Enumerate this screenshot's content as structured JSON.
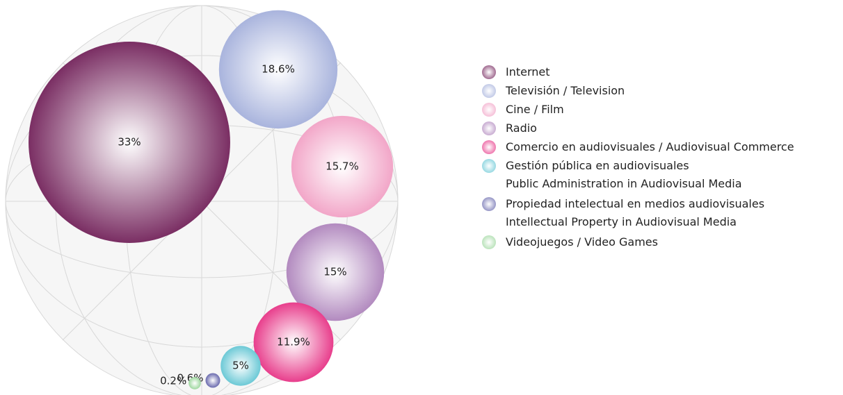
{
  "chart_data": {
    "type": "bubble",
    "categories": [
      "Internet",
      "Televisión / Television",
      "Cine / Film",
      "Radio",
      "Comercio en audiovisuales / Audiovisual Commerce",
      "Gestión pública en audiovisuales\nPublic Administration in Audiovisual Media",
      "Propiedad intelectual en medios audiovisuales\nIntellectual Property in Audiovisual Media",
      "Videojuegos / Video Games"
    ],
    "values": [
      33,
      18.6,
      15.7,
      15,
      11.9,
      5,
      0.6,
      0.2
    ],
    "value_labels": [
      "33%",
      "18.6%",
      "15.7%",
      "15%",
      "11.9%",
      "5%",
      "0.6%",
      "0.2%"
    ],
    "colors": [
      "#7a2e63",
      "#a9b4dd",
      "#f2a6c8",
      "#b28abf",
      "#e83e8c",
      "#6cc9d6",
      "#6a6aae",
      "#9fd8a0"
    ]
  }
}
